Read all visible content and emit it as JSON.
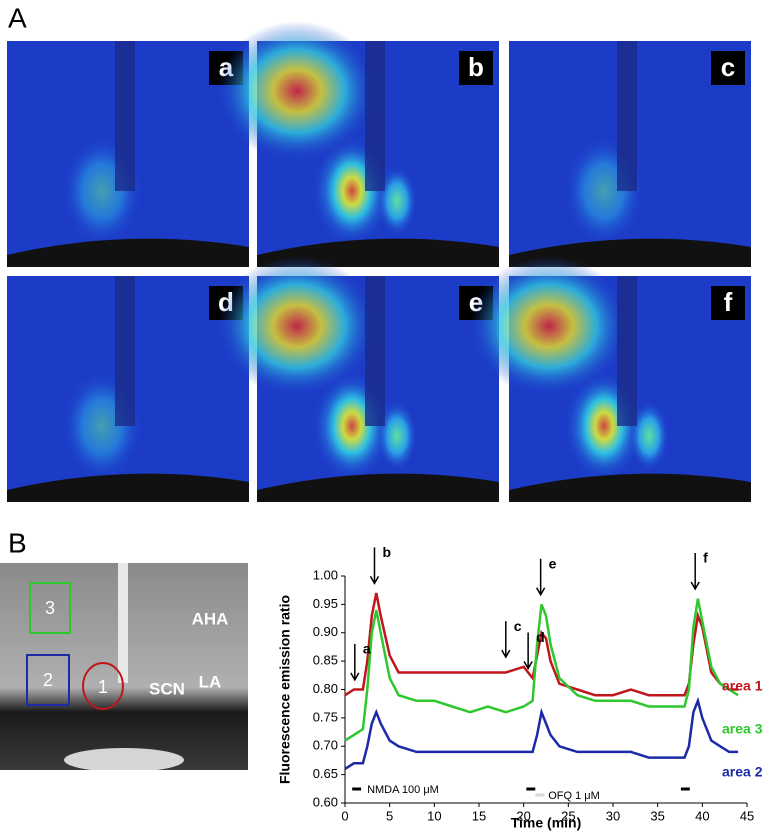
{
  "panel_labels": [
    "A",
    "B"
  ],
  "images": [
    "a",
    "b",
    "c",
    "d",
    "e",
    "f"
  ],
  "anatomy": {
    "regions": [
      "3",
      "2",
      "1"
    ],
    "labels": [
      "AHA",
      "LA",
      "SCN"
    ]
  },
  "chart_data": {
    "type": "line",
    "y_label": "Fluorescence emission ratio",
    "x_label": "Time (min)",
    "x": [
      0,
      1,
      2,
      2.5,
      3,
      3.5,
      4,
      5,
      6,
      8,
      10,
      12,
      14,
      16,
      18,
      20,
      21,
      21.5,
      22,
      22.5,
      23,
      24,
      26,
      28,
      30,
      32,
      34,
      36,
      38,
      38.5,
      39,
      39.5,
      40,
      41,
      42,
      43,
      44
    ],
    "series": [
      {
        "name": "area 1",
        "color": "#c0161e",
        "values": [
          0.79,
          0.8,
          0.8,
          0.85,
          0.93,
          0.97,
          0.93,
          0.86,
          0.83,
          0.83,
          0.83,
          0.83,
          0.83,
          0.83,
          0.83,
          0.84,
          0.82,
          0.86,
          0.9,
          0.89,
          0.85,
          0.81,
          0.8,
          0.79,
          0.79,
          0.8,
          0.79,
          0.79,
          0.79,
          0.81,
          0.88,
          0.93,
          0.91,
          0.83,
          0.81,
          0.8,
          0.8
        ]
      },
      {
        "name": "area 3",
        "color": "#2ec82e",
        "values": [
          0.71,
          0.72,
          0.73,
          0.8,
          0.9,
          0.94,
          0.9,
          0.82,
          0.79,
          0.78,
          0.78,
          0.77,
          0.76,
          0.77,
          0.76,
          0.77,
          0.78,
          0.88,
          0.95,
          0.93,
          0.88,
          0.82,
          0.79,
          0.78,
          0.78,
          0.78,
          0.77,
          0.77,
          0.77,
          0.8,
          0.91,
          0.96,
          0.92,
          0.84,
          0.81,
          0.8,
          0.79
        ]
      },
      {
        "name": "area 2",
        "color": "#1c2aa8",
        "values": [
          0.66,
          0.67,
          0.67,
          0.7,
          0.74,
          0.76,
          0.74,
          0.71,
          0.7,
          0.69,
          0.69,
          0.69,
          0.69,
          0.69,
          0.69,
          0.69,
          0.69,
          0.72,
          0.76,
          0.74,
          0.72,
          0.7,
          0.69,
          0.69,
          0.69,
          0.69,
          0.68,
          0.68,
          0.68,
          0.7,
          0.76,
          0.78,
          0.75,
          0.71,
          0.7,
          0.69,
          0.69
        ]
      }
    ],
    "xlim": [
      0,
      45
    ],
    "xticks": [
      0,
      5,
      10,
      15,
      20,
      25,
      30,
      35,
      40,
      45
    ],
    "ylim": [
      0.6,
      1.0
    ],
    "yticks": [
      {
        "value": 0.6,
        "label": "0.60"
      },
      {
        "value": 0.65,
        "label": "0.65"
      },
      {
        "value": 0.7,
        "label": "0.70"
      },
      {
        "value": 0.75,
        "label": "0.75"
      },
      {
        "value": 0.8,
        "label": "0.80"
      },
      {
        "value": 0.85,
        "label": "0.85"
      },
      {
        "value": 0.9,
        "label": "0.90"
      },
      {
        "value": 0.95,
        "label": "0.95"
      },
      {
        "value": 1.0,
        "label": "1.00"
      }
    ],
    "annotations": [
      {
        "text": "a",
        "x": 1.1,
        "y": 0.81
      },
      {
        "text": "b",
        "x": 3.3,
        "y": 0.98
      },
      {
        "text": "c",
        "x": 18,
        "y": 0.85
      },
      {
        "text": "d",
        "x": 20.5,
        "y": 0.83
      },
      {
        "text": "e",
        "x": 21.9,
        "y": 0.96
      },
      {
        "text": "f",
        "x": 39.2,
        "y": 0.97
      }
    ],
    "treatments": [
      {
        "label": "NMDA 100 μM",
        "color": "#000000",
        "intervals": [
          [
            0.8,
            1.8
          ],
          [
            20.3,
            21.3
          ],
          [
            37.6,
            38.6
          ]
        ]
      },
      {
        "label": "OFQ 1 μM",
        "color": "#d8d8d8",
        "intervals": [
          [
            21.3,
            22.3
          ]
        ]
      }
    ]
  }
}
